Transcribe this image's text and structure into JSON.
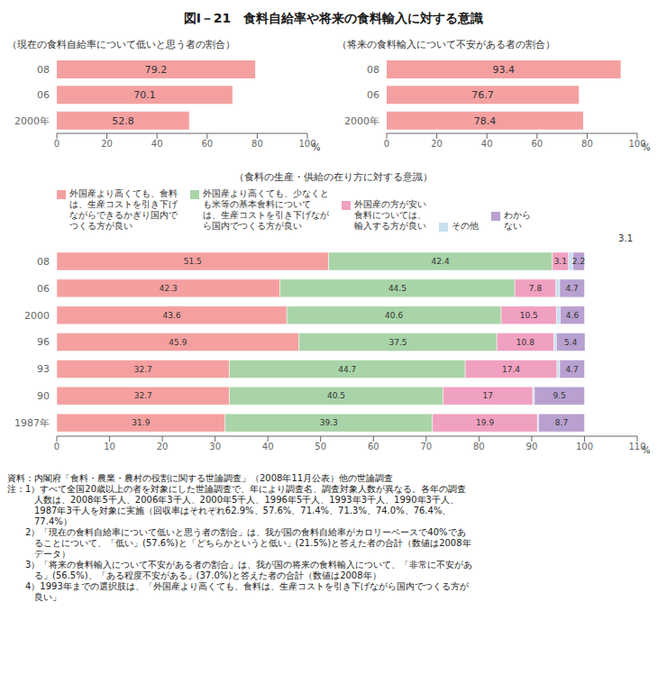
{
  "title": "図Ⅰ－21　食料自給率や将来の食料輸入に対する意識",
  "annotations": [
    "資料：内閣府「食料・農業・農村の役割に関する世論調査」（2008年11月公表）他の世論調査",
    "注：1）すべて全国20歳以上の者を対象にした世論調査で、年により調査名、調査対象人数が異なる。各年の調査",
    "　　　人数は、2008年5千人、2006年3千人、2000年5千人、1996年5千人、1993年3千人、1990年3千人、",
    "　　　1987年3千人を対象に実施（回収率はそれぞれ62.9%、57.6%、71.4%、71.3%、74.0%、76.4%、",
    "　　　77.4%）",
    "　　2）「現在の食料自給率について低いと思う者の割合」は、我が国の食料自給率がカロリーベースで40%であ",
    "　　　ることについて、「低い」(57.6%)と「どちらかというと低い」(21.5%)と答えた者の合計（数値は2008年",
    "　　　データ）",
    "　　3）「将来の食料輸入について不安がある者の割合」は、我が国の将来の食料輸入について、「非常に不安があ",
    "　　　る」(56.5%)、「ある程度不安がある」(37.0%)と答えた者の合計（数値は2008年）",
    "　　4）1993年までの選択肢は、「外国産より高くても、食料は、生産コストを引き下げながら国内でつくる方が",
    "　　　良い」"
  ],
  "chart_data": [
    {
      "type": "bar",
      "title": "（現在の食料自給率について低いと思う者の割合）",
      "orientation": "horizontal",
      "categories": [
        "08",
        "06",
        "2000年"
      ],
      "values": [
        79.2,
        70.1,
        52.8
      ],
      "color": "#f4a0a0",
      "xlim": [
        0,
        100
      ],
      "xticks": [
        0,
        20,
        40,
        60,
        80,
        100
      ],
      "xlabel": "%",
      "data_labels": true,
      "grid": false
    },
    {
      "type": "bar",
      "title": "（将来の食料輸入について不安がある者の割合）",
      "orientation": "horizontal",
      "categories": [
        "08",
        "06",
        "2000年"
      ],
      "values": [
        93.4,
        76.7,
        78.4
      ],
      "color": "#f4a0a0",
      "xlim": [
        0,
        100
      ],
      "xticks": [
        0,
        20,
        40,
        60,
        80,
        100
      ],
      "xlabel": "%",
      "data_labels": true,
      "grid": false
    },
    {
      "type": "bar",
      "title": "（食料の生産・供給の在り方に対する意識）",
      "orientation": "horizontal",
      "stacked": true,
      "categories": [
        "08",
        "06",
        "2000",
        "96",
        "93",
        "90",
        "1987年"
      ],
      "series": [
        {
          "name": "外国産より高くても、食料\nは、生産コストを引き下げ\nながらできるかぎり国内で\nつくる方が良い",
          "color": "#f4a0a0",
          "values": [
            51.5,
            42.3,
            43.6,
            45.9,
            32.7,
            32.7,
            31.9
          ]
        },
        {
          "name": "外国産より高くても、少なくと\nも米等の基本食料について\nは、生産コストを引き下げなが\nら国内でつくる方が良い",
          "color": "#a8d4a8",
          "values": [
            42.4,
            44.5,
            40.6,
            37.5,
            44.7,
            40.5,
            39.3
          ]
        },
        {
          "name": "外国産の方が安い\n食料については、\n輸入する方が良い",
          "color": "#f0a0c0",
          "values": [
            3.1,
            7.8,
            10.5,
            10.8,
            17.4,
            17.0,
            19.9
          ]
        },
        {
          "name": "その他",
          "color": "#c8e0f0",
          "values": [
            0.8,
            0.7,
            0.7,
            0.5,
            0.5,
            0.3,
            0.2
          ],
          "data_labels": false
        },
        {
          "name": "わから\nない",
          "color": "#b8a0d0",
          "values": [
            2.2,
            4.7,
            4.6,
            5.4,
            4.7,
            9.5,
            8.7
          ]
        }
      ],
      "xlim": [
        0,
        110
      ],
      "xticks": [
        0,
        10,
        20,
        30,
        40,
        50,
        60,
        70,
        80,
        90,
        100,
        110
      ],
      "xlabel": "%",
      "data_labels": true,
      "grid": false,
      "annotations": [
        "3.1"
      ]
    }
  ]
}
